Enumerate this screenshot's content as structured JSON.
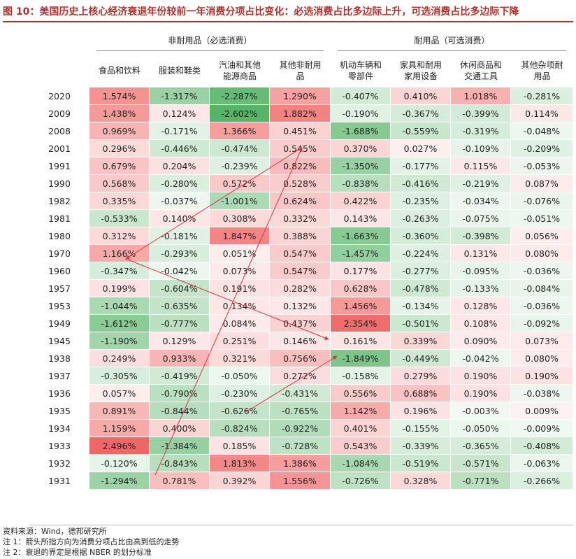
{
  "title": "图 10：美国历史上核心经济衰退年份较前一年消费分项占比变化：必选消费占比多边际上升，可选消费占比多边际下降",
  "groups": {
    "nondurable": "非耐用品（必选消费）",
    "durable": "耐用品（可选消费）"
  },
  "columns": [
    {
      "line1": "食品和饮料",
      "line2": ""
    },
    {
      "line1": "服装和鞋类",
      "line2": ""
    },
    {
      "line1": "汽油和其他",
      "line2": "能源商品"
    },
    {
      "line1": "其他非耐用",
      "line2": "品"
    },
    {
      "line1": "机动车辆和",
      "line2": "零部件"
    },
    {
      "line1": "家具和耐用",
      "line2": "家用设备"
    },
    {
      "line1": "休闲商品和",
      "line2": "交通工具"
    },
    {
      "line1": "其他杂项耐",
      "line2": "用品"
    }
  ],
  "rows": [
    {
      "year": "2020",
      "cells": [
        "1.574%",
        "-1.317%",
        "-2.287%",
        "1.290%",
        "-0.407%",
        "0.410%",
        "1.018%",
        "-0.281%"
      ]
    },
    {
      "year": "2009",
      "cells": [
        "1.438%",
        "0.124%",
        "-2.602%",
        "1.882%",
        "-0.190%",
        "-0.367%",
        "-0.399%",
        "0.114%"
      ]
    },
    {
      "year": "2008",
      "cells": [
        "0.969%",
        "-0.171%",
        "1.366%",
        "0.451%",
        "-1.688%",
        "-0.559%",
        "-0.319%",
        "-0.048%"
      ]
    },
    {
      "year": "2001",
      "cells": [
        "0.296%",
        "-0.446%",
        "-0.474%",
        "0.545%",
        "0.370%",
        "0.027%",
        "-0.109%",
        "-0.209%"
      ]
    },
    {
      "year": "1991",
      "cells": [
        "0.679%",
        "0.204%",
        "-0.239%",
        "0.822%",
        "-1.350%",
        "-0.177%",
        "0.115%",
        "-0.053%"
      ]
    },
    {
      "year": "1990",
      "cells": [
        "0.568%",
        "-0.280%",
        "0.572%",
        "0.528%",
        "-0.838%",
        "-0.416%",
        "-0.219%",
        "0.087%"
      ]
    },
    {
      "year": "1982",
      "cells": [
        "0.335%",
        "-0.037%",
        "-1.001%",
        "0.624%",
        "0.422%",
        "-0.235%",
        "-0.034%",
        "-0.076%"
      ]
    },
    {
      "year": "1981",
      "cells": [
        "-0.533%",
        "0.140%",
        "0.308%",
        "0.332%",
        "0.143%",
        "-0.263%",
        "-0.075%",
        "-0.051%"
      ]
    },
    {
      "year": "1980",
      "cells": [
        "0.312%",
        "-0.181%",
        "1.847%",
        "0.388%",
        "-1.663%",
        "-0.360%",
        "-0.398%",
        "0.056%"
      ]
    },
    {
      "year": "1970",
      "cells": [
        "1.166%",
        "-0.293%",
        "0.051%",
        "0.547%",
        "-1.457%",
        "-0.224%",
        "0.131%",
        "0.080%"
      ]
    },
    {
      "year": "1960",
      "cells": [
        "-0.347%",
        "-0.042%",
        "0.073%",
        "0.547%",
        "0.177%",
        "-0.277%",
        "-0.095%",
        "-0.036%"
      ]
    },
    {
      "year": "1957",
      "cells": [
        "0.199%",
        "-0.604%",
        "0.191%",
        "0.282%",
        "0.628%",
        "-0.478%",
        "-0.133%",
        "-0.084%"
      ]
    },
    {
      "year": "1953",
      "cells": [
        "-1.044%",
        "-0.635%",
        "0.134%",
        "0.132%",
        "1.456%",
        "-0.134%",
        "0.128%",
        "-0.036%"
      ]
    },
    {
      "year": "1949",
      "cells": [
        "-1.612%",
        "-0.777%",
        "0.084%",
        "0.437%",
        "2.354%",
        "-0.501%",
        "0.108%",
        "-0.092%"
      ]
    },
    {
      "year": "1945",
      "cells": [
        "-1.190%",
        "0.129%",
        "0.251%",
        "0.146%",
        "0.161%",
        "0.339%",
        "0.090%",
        "0.073%"
      ]
    },
    {
      "year": "1938",
      "cells": [
        "0.249%",
        "0.933%",
        "0.321%",
        "0.756%",
        "-1.849%",
        "-0.449%",
        "-0.042%",
        "0.080%"
      ]
    },
    {
      "year": "1937",
      "cells": [
        "-0.305%",
        "-0.419%",
        "-0.050%",
        "0.272%",
        "-0.158%",
        "0.279%",
        "0.190%",
        "0.190%"
      ]
    },
    {
      "year": "1936",
      "cells": [
        "0.057%",
        "-0.790%",
        "-0.230%",
        "-0.431%",
        "0.556%",
        "0.688%",
        "0.190%",
        "-0.038%"
      ]
    },
    {
      "year": "1935",
      "cells": [
        "0.891%",
        "-0.844%",
        "-0.626%",
        "-0.765%",
        "1.142%",
        "0.196%",
        "-0.003%",
        "0.009%"
      ]
    },
    {
      "year": "1934",
      "cells": [
        "1.159%",
        "0.400%",
        "-0.824%",
        "-0.922%",
        "0.401%",
        "-0.155%",
        "-0.050%",
        "-0.009%"
      ]
    },
    {
      "year": "1933",
      "cells": [
        "2.496%",
        "-1.384%",
        "0.185%",
        "-0.728%",
        "0.543%",
        "-0.339%",
        "-0.365%",
        "-0.408%"
      ]
    },
    {
      "year": "1932",
      "cells": [
        "-0.120%",
        "-0.843%",
        "1.813%",
        "1.386%",
        "-1.084%",
        "-0.519%",
        "-0.571%",
        "-0.063%"
      ]
    },
    {
      "year": "1931",
      "cells": [
        "-1.294%",
        "0.781%",
        "0.392%",
        "1.556%",
        "-0.726%",
        "0.328%",
        "-0.771%",
        "-0.266%"
      ]
    }
  ],
  "notes": {
    "source": "资料来源：Wind，德邦研究所",
    "note1": "注 1：箭头所指方向为消费分项占比由高到低的走势",
    "note2": "注 2：衰退的界定是根据 NBER 的划分标准"
  },
  "colors": {
    "positive": "#f07b7b",
    "negative": "#5cb870",
    "title": "#b0312c",
    "arrow": "#d9333f"
  }
}
